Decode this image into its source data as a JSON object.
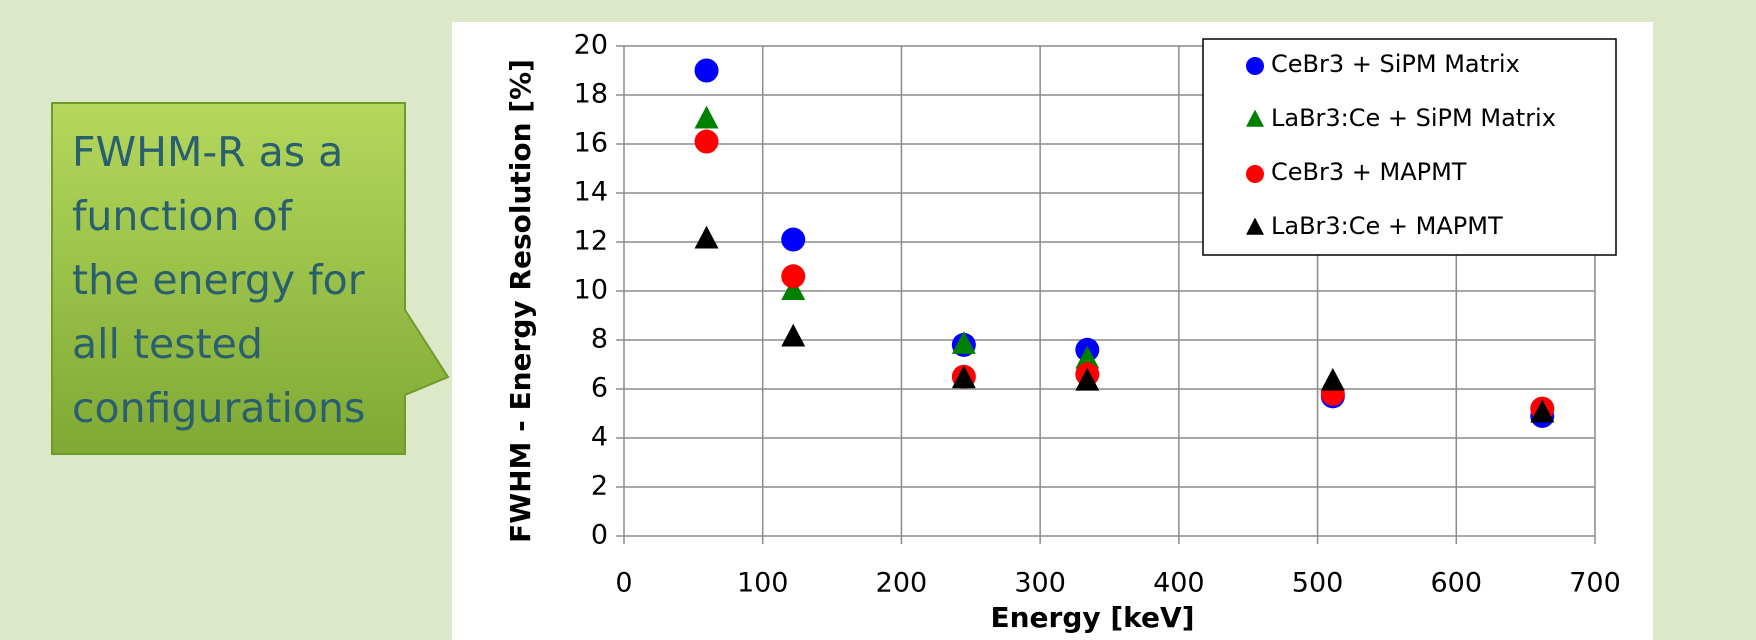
{
  "callout": {
    "lines": [
      "FWHM-R as a",
      "function of",
      "the energy for",
      "all tested",
      "configurations"
    ]
  },
  "chart_data": {
    "type": "scatter",
    "xlabel": "Energy [keV]",
    "ylabel": "FWHM - Energy Resolution [%]",
    "x": [
      59.5,
      122,
      245,
      334,
      511,
      662
    ],
    "series": [
      {
        "name": "CeBr3 + SiPM Matrix",
        "color": "#0000ff",
        "marker": "circle",
        "values": [
          19.0,
          12.1,
          7.8,
          7.6,
          5.7,
          4.9
        ]
      },
      {
        "name": "LaBr3:Ce + SiPM Matrix",
        "color": "#008000",
        "marker": "triangle",
        "values": [
          17.0,
          10.0,
          7.8,
          7.2,
          null,
          null
        ]
      },
      {
        "name": "CeBr3 + MAPMT",
        "color": "#ff0000",
        "marker": "circle",
        "values": [
          16.1,
          10.6,
          6.5,
          6.6,
          5.8,
          5.2
        ]
      },
      {
        "name": "LaBr3:Ce + MAPMT",
        "color": "#000000",
        "marker": "triangle",
        "values": [
          12.1,
          8.1,
          6.4,
          6.3,
          6.3,
          5.0
        ]
      }
    ],
    "xlim": [
      0,
      700
    ],
    "xticks": [
      0,
      100,
      200,
      300,
      400,
      500,
      600,
      700
    ],
    "ylim": [
      0,
      20
    ],
    "yticks": [
      0,
      2,
      4,
      6,
      8,
      10,
      12,
      14,
      16,
      18,
      20
    ],
    "grid": true,
    "legend": "upper right"
  }
}
